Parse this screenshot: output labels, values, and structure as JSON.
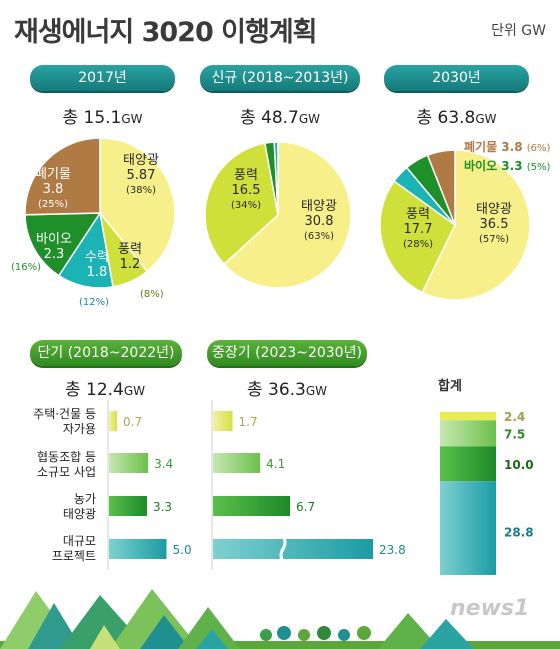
{
  "title": "재생에너지 3020 이행계획",
  "unit": "단위 GW",
  "colors": {
    "solar": "#f7f08a",
    "wind": "#cfe03a",
    "hydro": "#1bb3b3",
    "bio": "#1f8f2a",
    "waste": "#b07a44",
    "teal_bar": "#27a8ad",
    "green_bar": "#1f8f2a",
    "lightgreen_bar": "#8fd06a",
    "yellow_bar": "#e2ea6c"
  },
  "chart_data": [
    {
      "type": "pie",
      "title": "2017년",
      "total_label": "총 15.1",
      "total_unit": "GW",
      "slices": [
        {
          "label": "태양광",
          "value": 5.87,
          "pct": "(38%)"
        },
        {
          "label": "풍력",
          "value": 1.2,
          "pct": "(8%)"
        },
        {
          "label": "수력",
          "value": 1.8,
          "pct": "(12%)"
        },
        {
          "label": "바이오",
          "value": 2.3,
          "pct": "(16%)"
        },
        {
          "label": "폐기물",
          "value": 3.8,
          "pct": "(25%)"
        }
      ]
    },
    {
      "type": "pie",
      "title": "신규 (2018~2013년)",
      "total_label": "총 48.7",
      "total_unit": "GW",
      "slices": [
        {
          "label": "태양광",
          "value": 30.8,
          "pct": "(63%)"
        },
        {
          "label": "풍력",
          "value": 16.5,
          "pct": "(34%)"
        }
      ]
    },
    {
      "type": "pie",
      "title": "2030년",
      "total_label": "총 63.8",
      "total_unit": "GW",
      "slices": [
        {
          "label": "태양광",
          "value": 36.5,
          "pct": "(57%)"
        },
        {
          "label": "풍력",
          "value": 17.7,
          "pct": "(28%)"
        },
        {
          "label": "바이오",
          "value": 3.3,
          "pct": "(5%)"
        },
        {
          "label": "폐기물",
          "value": 3.8,
          "pct": "(6%)"
        }
      ]
    },
    {
      "type": "bar",
      "title": "단기 (2018~2022년)",
      "total_label": "총 12.4",
      "total_unit": "GW",
      "categories": [
        "주택·건물 등\n자가용",
        "협동조합 등\n소규모 사업",
        "농가\n태양광",
        "대규모\n프로젝트"
      ],
      "values": [
        0.7,
        3.4,
        3.3,
        5.0
      ]
    },
    {
      "type": "bar",
      "title": "중장기 (2023~2030년)",
      "total_label": "총 36.3",
      "total_unit": "GW",
      "categories": [
        "주택·건물 등\n자가용",
        "협동조합 등\n소규모 사업",
        "농가\n태양광",
        "대규모\n프로젝트"
      ],
      "values": [
        1.7,
        4.1,
        6.7,
        23.8
      ],
      "axis_break": "대규모 프로젝트"
    },
    {
      "type": "bar",
      "title": "합계",
      "stacked": true,
      "values": [
        2.4,
        7.5,
        10.0,
        28.8
      ],
      "value_labels": [
        "2.4",
        "7.5",
        "10.0",
        "28.8"
      ]
    }
  ],
  "labels": {
    "p1_solar": [
      "태양광",
      "5.87",
      "(38%)"
    ],
    "p1_wind": [
      "풍력",
      "1.2"
    ],
    "p1_wind_pct": "(8%)",
    "p1_hydro": [
      "수력",
      "1.8"
    ],
    "p1_hydro_pct": "(12%)",
    "p1_bio": [
      "바이오",
      "2.3"
    ],
    "p1_bio_pct": "(16%)",
    "p1_waste": [
      "폐기물",
      "3.8",
      "(25%)"
    ],
    "p2_solar": [
      "태양광",
      "30.8",
      "(63%)"
    ],
    "p2_wind": [
      "풍력",
      "16.5",
      "(34%)"
    ],
    "p3_solar": [
      "태양광",
      "36.5",
      "(57%)"
    ],
    "p3_wind": [
      "풍력",
      "17.7",
      "(28%)"
    ],
    "p3_waste": "폐기물 3.8",
    "p3_waste_pct": "(6%)",
    "p3_bio": "바이오 3.3",
    "p3_bio_pct": "(5%)"
  },
  "bar_categories": [
    [
      "주택·건물 등",
      "자가용"
    ],
    [
      "협동조합 등",
      "소규모 사업"
    ],
    [
      "농가",
      "태양광"
    ],
    [
      "대규모",
      "프로젝트"
    ]
  ],
  "short_values": [
    "0.7",
    "3.4",
    "3.3",
    "5.0"
  ],
  "mid_values": [
    "1.7",
    "4.1",
    "6.7",
    "23.8"
  ],
  "total_title": "합계",
  "logo": "news1"
}
